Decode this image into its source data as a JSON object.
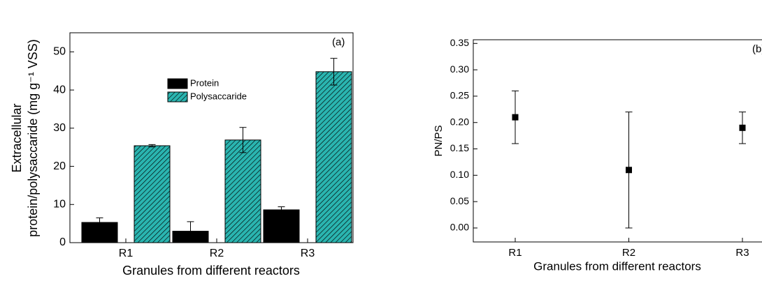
{
  "chart_data": [
    {
      "type": "bar",
      "panel_label": "(a)",
      "xlabel": "Granules from different reactors",
      "ylabel": [
        "Extracellular",
        "protein/polysaccaride (mg g⁻¹ VSS)"
      ],
      "categories": [
        "R1",
        "R2",
        "R3"
      ],
      "series": [
        {
          "name": "Protein",
          "color": "#000000",
          "values": [
            5.3,
            3.0,
            8.6
          ],
          "errors": [
            1.2,
            2.5,
            0.8
          ]
        },
        {
          "name": "Polysaccaride",
          "color": "#2ab5b0",
          "hatch": true,
          "values": [
            25.4,
            26.9,
            44.8
          ],
          "errors": [
            0.3,
            3.3,
            3.5
          ]
        }
      ],
      "ylim": [
        0,
        55
      ],
      "yticks": [
        0,
        10,
        20,
        30,
        40,
        50
      ]
    },
    {
      "type": "scatter",
      "panel_label": "(b)",
      "xlabel": "Granules from different reactors",
      "ylabel": "PN/PS",
      "categories": [
        "R1",
        "R2",
        "R3"
      ],
      "values": [
        0.21,
        0.11,
        0.19
      ],
      "errors": [
        0.05,
        0.11,
        0.03
      ],
      "color": "#000000",
      "ylim": [
        -0.0265,
        0.357
      ],
      "yticks": [
        {
          "value": 0,
          "label": "0.00"
        },
        {
          "value": 0.05,
          "label": "0.05"
        },
        {
          "value": 0.1,
          "label": "0.10"
        },
        {
          "value": 0.15,
          "label": "0.15"
        },
        {
          "value": 0.2,
          "label": "0.20"
        },
        {
          "value": 0.25,
          "label": "0.25"
        },
        {
          "value": 0.3,
          "label": "0.30"
        },
        {
          "value": 0.35,
          "label": "0.35"
        }
      ]
    }
  ]
}
